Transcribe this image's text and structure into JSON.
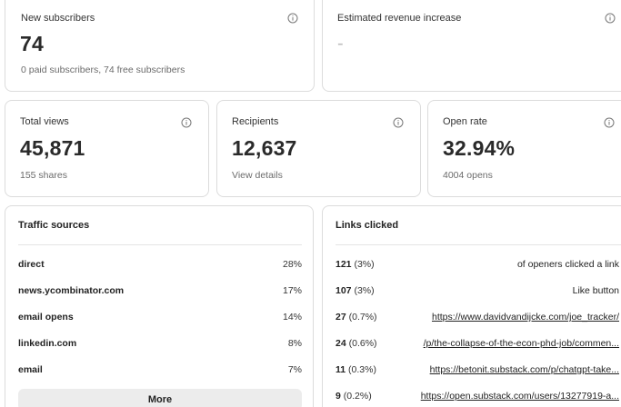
{
  "cards": {
    "new_subscribers": {
      "label": "New subscribers",
      "value": "74",
      "sub": "0 paid subscribers, 74 free subscribers"
    },
    "revenue": {
      "label": "Estimated revenue increase",
      "value": "-"
    },
    "total_views": {
      "label": "Total views",
      "value": "45,871",
      "sub": "155 shares"
    },
    "recipients": {
      "label": "Recipients",
      "value": "12,637",
      "sub": "View details"
    },
    "open_rate": {
      "label": "Open rate",
      "value": "32.94%",
      "sub": "4004 opens"
    }
  },
  "traffic_sources": {
    "title": "Traffic sources",
    "rows": [
      {
        "name": "direct",
        "pct": "28%"
      },
      {
        "name": "news.ycombinator.com",
        "pct": "17%"
      },
      {
        "name": "email opens",
        "pct": "14%"
      },
      {
        "name": "linkedin.com",
        "pct": "8%"
      },
      {
        "name": "email",
        "pct": "7%"
      }
    ],
    "more_label": "More"
  },
  "links_clicked": {
    "title": "Links clicked",
    "rows": [
      {
        "count": "121",
        "pct": "(3%)",
        "text": "of openers clicked a link"
      },
      {
        "count": "107",
        "pct": "(3%)",
        "text": "Like button"
      },
      {
        "count": "27",
        "pct": "(0.7%)",
        "text": "https://www.davidvandijcke.com/joe_tracker/"
      },
      {
        "count": "24",
        "pct": "(0.6%)",
        "text": "/p/the-collapse-of-the-econ-phd-job/commen..."
      },
      {
        "count": "11",
        "pct": "(0.3%)",
        "text": "https://betonit.substack.com/p/chatgpt-take..."
      },
      {
        "count": "9",
        "pct": "(0.2%)",
        "text": "https://open.substack.com/users/13277919-a..."
      }
    ]
  },
  "icons": {
    "info": "info-circle-icon"
  }
}
